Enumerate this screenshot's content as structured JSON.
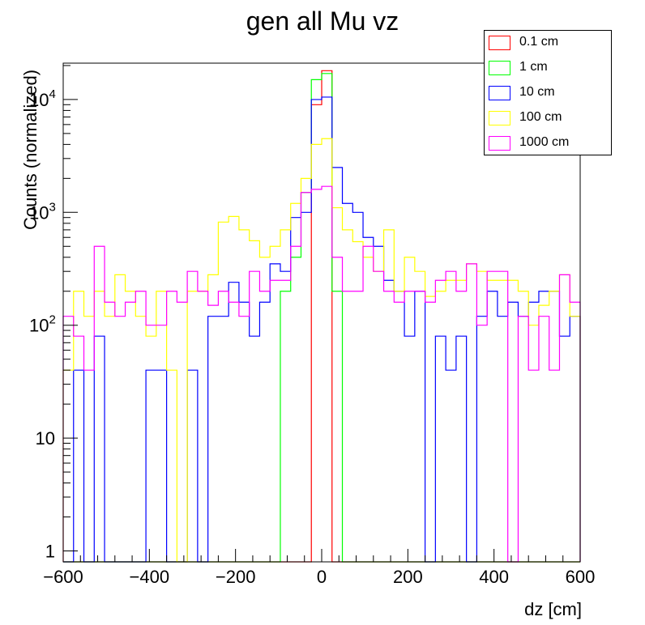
{
  "chart_data": {
    "type": "step",
    "title": "gen all Mu vz",
    "xlabel": "dz [cm]",
    "ylabel": "Counts (normalized)",
    "xlim": [
      -600,
      600
    ],
    "ylim": [
      0.8,
      21000
    ],
    "yscale": "log",
    "grid": false,
    "legend_position": "top-right",
    "x_ticks": [
      -600,
      -400,
      -200,
      0,
      200,
      400,
      600
    ],
    "x_tick_labels": [
      "−600",
      "−400",
      "−200",
      "0",
      "200",
      "400",
      "600"
    ],
    "y_ticks": [
      1,
      10,
      100,
      1000,
      10000
    ],
    "y_tick_labels": [
      {
        "base": "1",
        "exp": ""
      },
      {
        "base": "10",
        "exp": ""
      },
      {
        "base": "10",
        "exp": "2"
      },
      {
        "base": "10",
        "exp": "3"
      },
      {
        "base": "10",
        "exp": "4"
      }
    ],
    "bin_edges_start": -600,
    "bin_width": 24,
    "series": [
      {
        "name": "0.1 cm",
        "color": "#ff0000",
        "values": [
          0,
          0,
          0,
          0,
          0,
          0,
          0,
          0,
          0,
          0,
          0,
          0,
          0,
          0,
          0,
          0,
          0,
          0,
          0,
          0,
          0,
          0,
          0,
          0,
          9000,
          18000,
          0,
          0,
          0,
          0,
          0,
          0,
          0,
          0,
          0,
          0,
          0,
          0,
          0,
          0,
          0,
          0,
          0,
          0,
          0,
          0,
          0,
          0,
          0,
          0
        ]
      },
      {
        "name": "1 cm",
        "color": "#00ff00",
        "values": [
          0,
          0,
          0,
          0,
          0,
          0,
          0,
          0,
          0,
          0,
          0,
          0,
          0,
          0,
          0,
          0,
          0,
          0,
          0,
          0,
          0,
          200,
          400,
          1500,
          15000,
          17000,
          200,
          0,
          0,
          0,
          0,
          0,
          0,
          0,
          0,
          0,
          0,
          0,
          0,
          0,
          0,
          0,
          0,
          0,
          0,
          0,
          0,
          0,
          0,
          0
        ]
      },
      {
        "name": "10 cm",
        "color": "#0000ff",
        "values": [
          0,
          40,
          0,
          80,
          0,
          0,
          0,
          0,
          40,
          40,
          0,
          0,
          40,
          0,
          120,
          120,
          240,
          160,
          80,
          160,
          350,
          300,
          900,
          1000,
          10000,
          10500,
          2500,
          1200,
          1000,
          600,
          500,
          250,
          200,
          80,
          200,
          0,
          80,
          40,
          80,
          0,
          120,
          200,
          120,
          160,
          120,
          160,
          200,
          200,
          80,
          120
        ]
      },
      {
        "name": "100 cm",
        "color": "#ffff00",
        "values": [
          40,
          200,
          120,
          200,
          120,
          280,
          200,
          120,
          80,
          200,
          40,
          0,
          200,
          200,
          280,
          820,
          920,
          700,
          560,
          400,
          500,
          700,
          1200,
          2000,
          4000,
          4500,
          1100,
          700,
          550,
          400,
          300,
          700,
          200,
          400,
          300,
          180,
          200,
          250,
          250,
          350,
          300,
          250,
          250,
          250,
          200,
          100,
          150,
          200,
          280,
          120
        ]
      },
      {
        "name": "1000 cm",
        "color": "#ff00ff",
        "values": [
          120,
          80,
          40,
          500,
          160,
          120,
          160,
          200,
          100,
          100,
          200,
          160,
          300,
          200,
          150,
          200,
          160,
          120,
          300,
          200,
          250,
          250,
          500,
          1500,
          1600,
          1700,
          400,
          200,
          200,
          500,
          300,
          200,
          160,
          200,
          200,
          160,
          250,
          300,
          200,
          350,
          100,
          300,
          300,
          0,
          120,
          40,
          120,
          40,
          280,
          160
        ]
      }
    ]
  }
}
